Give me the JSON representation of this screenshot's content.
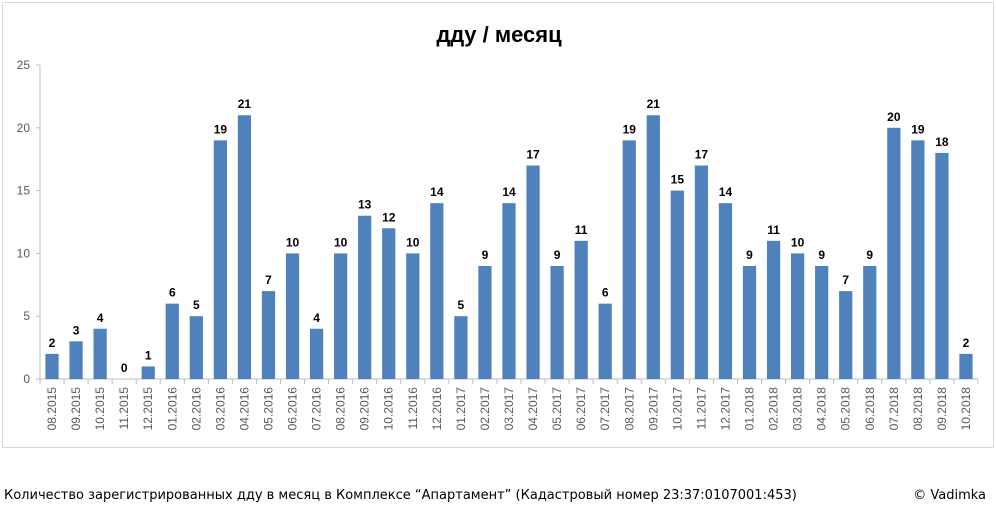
{
  "chart_data": {
    "type": "bar",
    "title": "ддy / месяц",
    "categories": [
      "08.2015",
      "09.2015",
      "10.2015",
      "11.2015",
      "12.2015",
      "01.2016",
      "02.2016",
      "03.2016",
      "04.2016",
      "05.2016",
      "06.2016",
      "07.2016",
      "08.2016",
      "09.2016",
      "10.2016",
      "11.2016",
      "12.2016",
      "01.2017",
      "02.2017",
      "03.2017",
      "04.2017",
      "05.2017",
      "06.2017",
      "07.2017",
      "08.2017",
      "09.2017",
      "10.2017",
      "11.2017",
      "12.2017",
      "01.2018",
      "02.2018",
      "03.2018",
      "04.2018",
      "05.2018",
      "06.2018",
      "07.2018",
      "08.2018",
      "09.2018",
      "10.2018"
    ],
    "values": [
      2,
      3,
      4,
      0,
      1,
      6,
      5,
      19,
      21,
      7,
      10,
      4,
      10,
      13,
      12,
      10,
      14,
      5,
      9,
      14,
      17,
      9,
      11,
      6,
      19,
      21,
      15,
      17,
      14,
      9,
      11,
      10,
      9,
      7,
      9,
      20,
      19,
      18,
      2
    ],
    "ylim": [
      0,
      25
    ],
    "yticks": [
      0,
      5,
      10,
      15,
      20,
      25
    ],
    "grid": false,
    "bar_color": "#4f81bd",
    "data_labels": true
  },
  "caption": {
    "text": "Количество зарегистрированных дду в месяц в Комплексе “Апартамент” (Кадастровый номер 23:37:0107001:453)",
    "credit": "© Vadimka"
  }
}
